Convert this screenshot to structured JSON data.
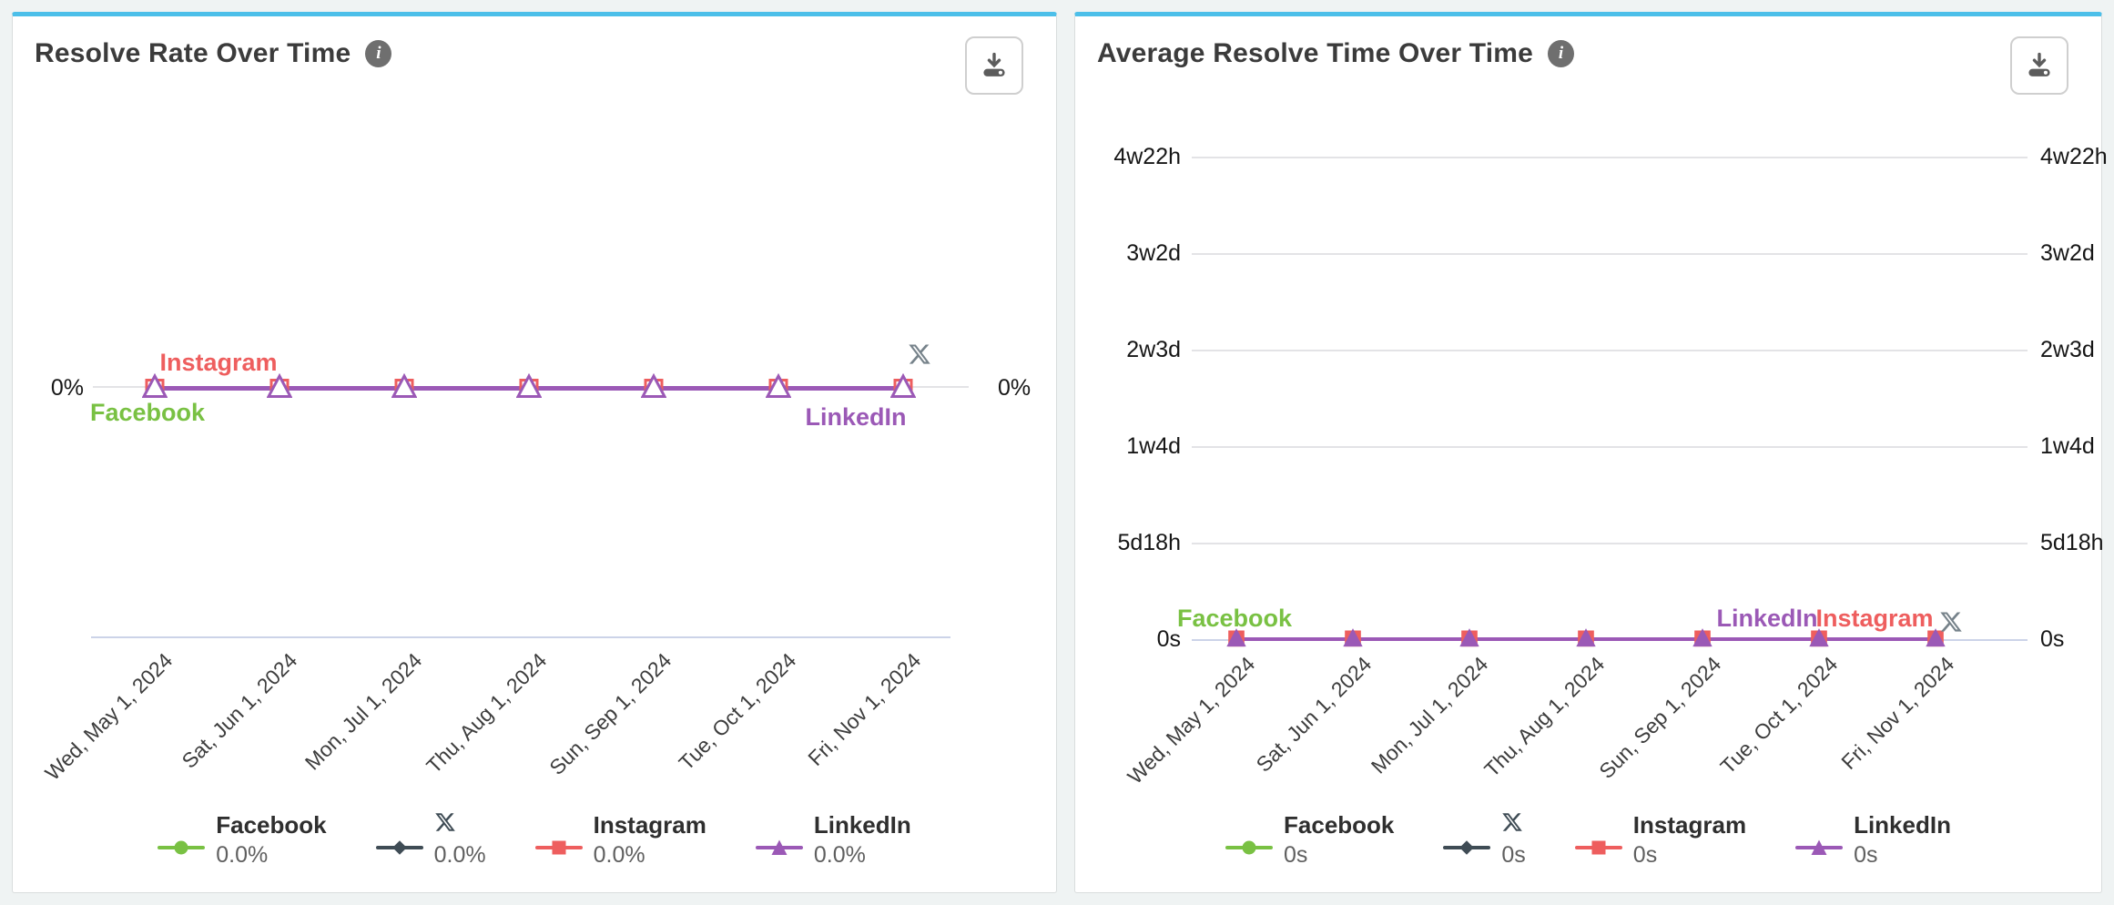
{
  "colors": {
    "accent_top_border": "#4cbfe9",
    "facebook": "#79c143",
    "x": "#3f4c55",
    "instagram": "#ee5e5e",
    "linkedin": "#9b59b6",
    "x_chart_label": "#76828a",
    "gridline": "#e3e3e6",
    "axis_line": "#ccd3e8",
    "icon_gray": "#5c5c5c"
  },
  "info_icon_glyph": "i",
  "panels": [
    {
      "title": "Resolve Rate Over Time",
      "point_labels": [
        {
          "text": "Instagram",
          "series": "instagram"
        },
        {
          "text": "Facebook",
          "series": "facebook"
        },
        {
          "text": "LinkedIn",
          "series": "linkedin"
        },
        {
          "icon": "x-logo",
          "series": "x"
        }
      ],
      "legend": [
        {
          "name": "Facebook",
          "value": "0.0%",
          "series": "facebook",
          "marker": "circle"
        },
        {
          "name": "X",
          "icon": "x-logo",
          "value": "0.0%",
          "series": "x",
          "marker": "diamond"
        },
        {
          "name": "Instagram",
          "value": "0.0%",
          "series": "instagram",
          "marker": "square"
        },
        {
          "name": "LinkedIn",
          "value": "0.0%",
          "series": "linkedin",
          "marker": "triangle"
        }
      ]
    },
    {
      "title": "Average Resolve Time Over Time",
      "point_labels": [
        {
          "text": "Facebook",
          "series": "facebook"
        },
        {
          "text": "LinkedIn",
          "series": "linkedin"
        },
        {
          "text": "Instagram",
          "series": "instagram"
        },
        {
          "icon": "x-logo",
          "series": "x"
        }
      ],
      "legend": [
        {
          "name": "Facebook",
          "value": "0s",
          "series": "facebook",
          "marker": "circle"
        },
        {
          "name": "X",
          "icon": "x-logo",
          "value": "0s",
          "series": "x",
          "marker": "diamond"
        },
        {
          "name": "Instagram",
          "value": "0s",
          "series": "instagram",
          "marker": "square"
        },
        {
          "name": "LinkedIn",
          "value": "0s",
          "series": "linkedin",
          "marker": "triangle"
        }
      ]
    }
  ],
  "chart_data": [
    {
      "type": "line",
      "title": "Resolve Rate Over Time",
      "x": [
        "Wed, May 1, 2024",
        "Sat, Jun 1, 2024",
        "Mon, Jul 1, 2024",
        "Thu, Aug 1, 2024",
        "Sun, Sep 1, 2024",
        "Tue, Oct 1, 2024",
        "Fri, Nov 1, 2024"
      ],
      "y_ticks_left": [
        "0%"
      ],
      "y_ticks_right": [
        "0%"
      ],
      "unit": "%",
      "grid": "horizontal",
      "legend_position": "bottom",
      "series": [
        {
          "name": "Facebook",
          "display_value": "0.0%",
          "values": [
            0,
            0,
            0,
            0,
            0,
            0,
            0
          ]
        },
        {
          "name": "X",
          "display_value": "0.0%",
          "values": [
            0,
            0,
            0,
            0,
            0,
            0,
            0
          ]
        },
        {
          "name": "Instagram",
          "display_value": "0.0%",
          "values": [
            0,
            0,
            0,
            0,
            0,
            0,
            0
          ]
        },
        {
          "name": "LinkedIn",
          "display_value": "0.0%",
          "values": [
            0,
            0,
            0,
            0,
            0,
            0,
            0
          ]
        }
      ]
    },
    {
      "type": "line",
      "title": "Average Resolve Time Over Time",
      "x": [
        "Wed, May 1, 2024",
        "Sat, Jun 1, 2024",
        "Mon, Jul 1, 2024",
        "Thu, Aug 1, 2024",
        "Sun, Sep 1, 2024",
        "Tue, Oct 1, 2024",
        "Fri, Nov 1, 2024"
      ],
      "y_ticks_left": [
        "4w22h",
        "3w2d",
        "2w3d",
        "1w4d",
        "5d18h",
        "0s"
      ],
      "y_ticks_right": [
        "4w22h",
        "3w2d",
        "2w3d",
        "1w4d",
        "5d18h",
        "0s"
      ],
      "unit": "duration",
      "grid": "horizontal",
      "legend_position": "bottom",
      "series": [
        {
          "name": "Facebook",
          "display_value": "0s",
          "values": [
            0,
            0,
            0,
            0,
            0,
            0,
            0
          ]
        },
        {
          "name": "X",
          "display_value": "0s",
          "values": [
            0,
            0,
            0,
            0,
            0,
            0,
            0
          ]
        },
        {
          "name": "Instagram",
          "display_value": "0s",
          "values": [
            0,
            0,
            0,
            0,
            0,
            0,
            0
          ]
        },
        {
          "name": "LinkedIn",
          "display_value": "0s",
          "values": [
            0,
            0,
            0,
            0,
            0,
            0,
            0
          ]
        }
      ]
    }
  ]
}
